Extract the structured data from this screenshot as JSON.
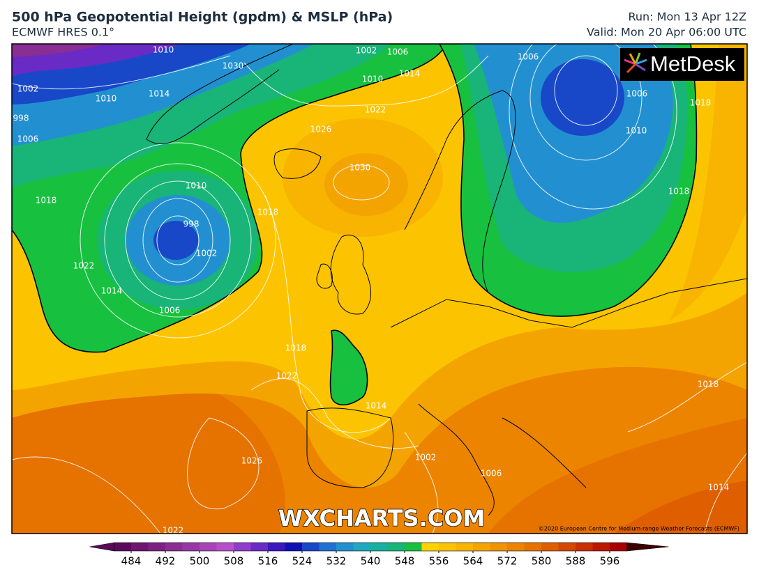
{
  "header": {
    "title": "500 hPa Geopotential Height (gpdm) & MSLP (hPa)",
    "subtitle": "ECMWF HRES 0.1°",
    "run": "Run: Mon 13 Apr 12Z",
    "valid": "Valid: Mon 20 Apr 06:00 UTC"
  },
  "logo": "MetDesk",
  "watermark": "WXCHARTS.COM",
  "copyright": "©2020 European Centre for Medium-range Weather Forecasts (ECMWF)",
  "isobar_labels": [
    "1010",
    "1002",
    "1006",
    "1006",
    "1002",
    "1010",
    "1030",
    "1014",
    "1010",
    "1014",
    "998",
    "1006",
    "1022",
    "1026",
    "1006",
    "1018",
    "1010",
    "1030",
    "1010",
    "1018",
    "998",
    "1018",
    "1018",
    "1002",
    "1022",
    "1014",
    "1006",
    "1018",
    "1022",
    "1014",
    "1018",
    "1026",
    "1002",
    "1006",
    "1014",
    "1022"
  ],
  "colorbar": {
    "range": [
      480,
      600
    ],
    "colors": [
      "#5a0a5a",
      "#6e1670",
      "#7d2282",
      "#8a2e94",
      "#9838a6",
      "#a844b8",
      "#b84fc8",
      "#8e3ccc",
      "#6a2ac6",
      "#3a18be",
      "#1010b4",
      "#1848c8",
      "#2070d4",
      "#2290d0",
      "#20a8c0",
      "#18b0a0",
      "#18b478",
      "#18c040",
      "#ffd200",
      "#fcc400",
      "#f8b400",
      "#f4a400",
      "#f09400",
      "#ec8400",
      "#e67200",
      "#de5e00",
      "#d44800",
      "#c83000",
      "#bc1800",
      "#a80000"
    ],
    "ticks": [
      484,
      492,
      500,
      508,
      516,
      524,
      532,
      540,
      548,
      556,
      564,
      572,
      580,
      588,
      596
    ]
  }
}
